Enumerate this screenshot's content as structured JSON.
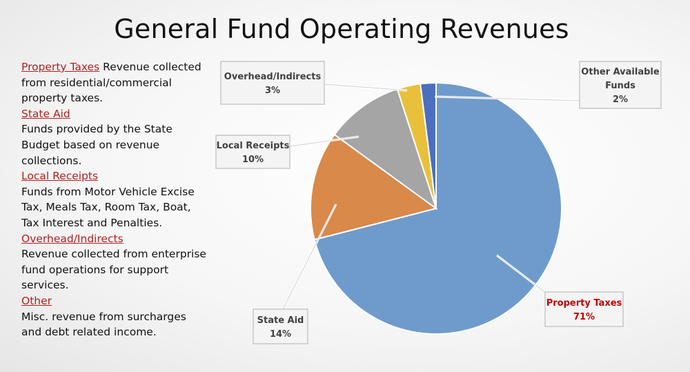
{
  "title": "General Fund Operating Revenues",
  "definitions": [
    {
      "term": "Property Taxes",
      "text": "Revenue collected from residential/commercial property taxes."
    },
    {
      "term": "State Aid",
      "text": "Funds provided by the State Budget based on revenue collections."
    },
    {
      "term": "Local Receipts",
      "text": "Funds from Motor Vehicle Excise Tax, Meals Tax, Room Tax, Boat, Tax Interest and Penalties."
    },
    {
      "term": "Overhead/Indirects",
      "text": "Revenue collected from enterprise fund operations for support services."
    },
    {
      "term": "Other",
      "text": "Misc. revenue from surcharges and debt related income."
    }
  ],
  "chart_data": {
    "type": "pie",
    "title": "",
    "slices": [
      {
        "label": "Property Taxes",
        "value": 71,
        "display": "71%",
        "color": "#6f9bcc"
      },
      {
        "label": "State Aid",
        "value": 14,
        "display": "14%",
        "color": "#d9894a"
      },
      {
        "label": "Local Receipts",
        "value": 10,
        "display": "10%",
        "color": "#a5a5a5"
      },
      {
        "label": "Overhead/Indirects",
        "value": 3,
        "display": "3%",
        "color": "#e9c03c"
      },
      {
        "label": "Other Available Funds",
        "value": 2,
        "display": "2%",
        "color": "#4a6fbf"
      }
    ],
    "label_color_highlight": "#c00000"
  }
}
